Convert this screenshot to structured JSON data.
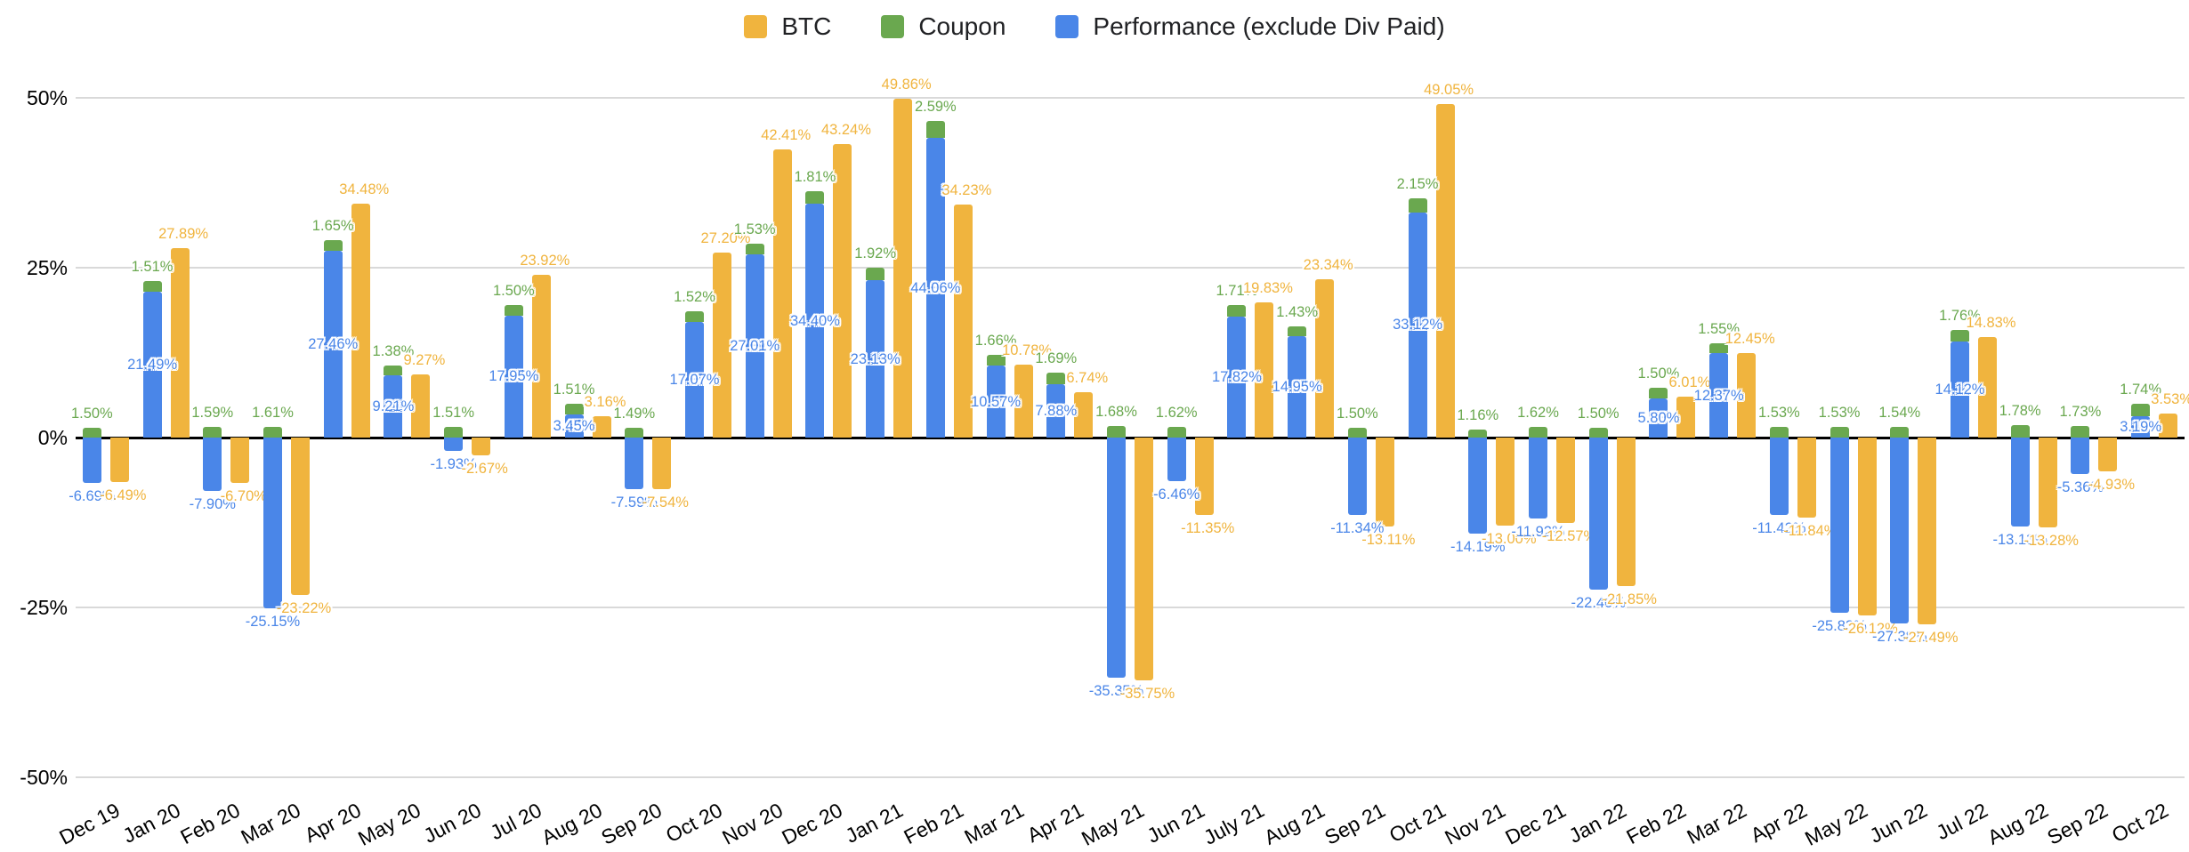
{
  "legend": [
    {
      "label": "BTC",
      "color": "#F0B43E"
    },
    {
      "label": "Coupon",
      "color": "#6AA84F"
    },
    {
      "label": "Performance (exclude Div Paid)",
      "color": "#4A86E8"
    }
  ],
  "y_axis": {
    "ticks": [
      "50%",
      "25%",
      "0%",
      "-25%",
      "-50%"
    ],
    "tick_values": [
      50,
      25,
      0,
      -25,
      -50
    ]
  },
  "chart_data": {
    "type": "bar",
    "title": "",
    "xlabel": "",
    "ylabel": "",
    "ylim": [
      -50,
      50
    ],
    "grid": true,
    "legend_position": "top-center",
    "value_format": "two-decimal percent",
    "stacking": "Coupon is stacked on top of Performance in one column; BTC is a separate adjacent column",
    "categories": [
      "Dec 19",
      "Jan 20",
      "Feb 20",
      "Mar 20",
      "Apr 20",
      "May 20",
      "Jun 20",
      "Jul 20",
      "Aug 20",
      "Sep 20",
      "Oct 20",
      "Nov 20",
      "Dec 20",
      "Jan 21",
      "Feb 21",
      "Mar 21",
      "Apr 21",
      "May 21",
      "Jun 21",
      "July 21",
      "Aug 21",
      "Sep 21",
      "Oct 21",
      "Nov 21",
      "Dec 21",
      "Jan 22",
      "Feb 22",
      "Mar 22",
      "Apr 22",
      "May 22",
      "Jun 22",
      "Jul 22",
      "Aug 22",
      "Sep 22",
      "Oct 22"
    ],
    "series": [
      {
        "name": "BTC",
        "color": "#F0B43E",
        "values": [
          -6.49,
          27.89,
          -6.7,
          -23.22,
          34.48,
          9.27,
          -2.67,
          23.92,
          3.16,
          -7.54,
          27.2,
          42.41,
          43.24,
          49.86,
          34.23,
          10.78,
          6.74,
          -35.75,
          -11.35,
          19.83,
          23.34,
          -13.11,
          49.05,
          -13.0,
          -12.57,
          -21.85,
          6.01,
          12.45,
          -11.84,
          -26.12,
          -27.49,
          14.83,
          -13.28,
          -4.93,
          3.53
        ]
      },
      {
        "name": "Coupon",
        "color": "#6AA84F",
        "values": [
          1.5,
          1.51,
          1.59,
          1.61,
          1.65,
          1.38,
          1.51,
          1.5,
          1.51,
          1.49,
          1.52,
          1.53,
          1.81,
          1.92,
          2.59,
          1.66,
          1.69,
          1.68,
          1.62,
          1.71,
          1.43,
          1.5,
          2.15,
          1.16,
          1.62,
          1.5,
          1.5,
          1.55,
          1.53,
          1.53,
          1.54,
          1.76,
          1.78,
          1.73,
          1.74
        ]
      },
      {
        "name": "Performance (exclude Div Paid)",
        "color": "#4A86E8",
        "values": [
          -6.69,
          21.49,
          -7.9,
          -25.15,
          27.46,
          9.21,
          -1.93,
          17.95,
          3.45,
          -7.59,
          17.07,
          27.01,
          34.4,
          23.13,
          44.06,
          10.57,
          7.88,
          -35.35,
          -6.46,
          17.82,
          14.95,
          -11.34,
          33.12,
          -14.19,
          -11.92,
          -22.4,
          5.8,
          12.37,
          -11.42,
          -25.83,
          -27.38,
          14.12,
          -13.13,
          -5.36,
          3.19
        ]
      }
    ]
  }
}
